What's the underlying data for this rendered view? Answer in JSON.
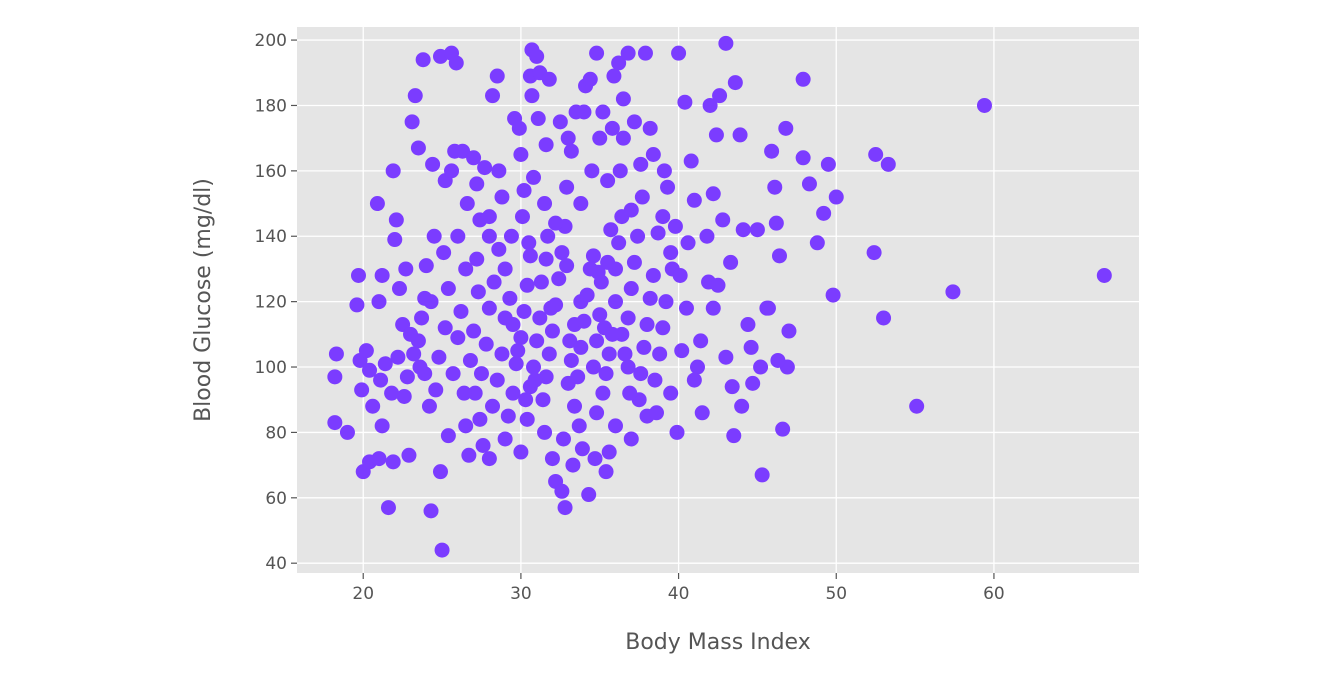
{
  "chart_data": {
    "type": "scatter",
    "title": "",
    "xlabel": "Body Mass Index",
    "ylabel": "Blood Glucose (mg/dl)",
    "xlim": [
      15.8,
      69.2
    ],
    "ylim": [
      37,
      204
    ],
    "xticks": [
      20,
      30,
      40,
      50,
      60
    ],
    "yticks": [
      40,
      60,
      80,
      100,
      120,
      140,
      160,
      180,
      200
    ],
    "grid": true,
    "colors": {
      "marker": "#7b3cff",
      "plot_bg": "#e5e5e5",
      "grid": "#ffffff",
      "text": "#555555"
    },
    "points": [
      [
        18.2,
        97
      ],
      [
        18.3,
        104
      ],
      [
        18.2,
        83
      ],
      [
        19.0,
        80
      ],
      [
        19.7,
        128
      ],
      [
        19.6,
        119
      ],
      [
        19.8,
        102
      ],
      [
        19.9,
        93
      ],
      [
        20.2,
        105
      ],
      [
        20.4,
        99
      ],
      [
        20.0,
        68
      ],
      [
        20.4,
        71
      ],
      [
        21.0,
        72
      ],
      [
        20.9,
        150
      ],
      [
        21.2,
        82
      ],
      [
        21.1,
        96
      ],
      [
        21.4,
        101
      ],
      [
        21.0,
        120
      ],
      [
        21.2,
        128
      ],
      [
        21.6,
        57
      ],
      [
        21.9,
        71
      ],
      [
        21.9,
        160
      ],
      [
        22.1,
        145
      ],
      [
        22.0,
        139
      ],
      [
        22.3,
        124
      ],
      [
        22.5,
        113
      ],
      [
        22.7,
        130
      ],
      [
        22.6,
        91
      ],
      [
        22.9,
        73
      ],
      [
        23.1,
        175
      ],
      [
        23.3,
        183
      ],
      [
        23.5,
        167
      ],
      [
        23.8,
        194
      ],
      [
        23.2,
        104
      ],
      [
        23.5,
        108
      ],
      [
        23.7,
        115
      ],
      [
        23.9,
        98
      ],
      [
        24.2,
        88
      ],
      [
        24.3,
        56
      ],
      [
        24.5,
        140
      ],
      [
        24.0,
        131
      ],
      [
        24.3,
        120
      ],
      [
        24.4,
        162
      ],
      [
        25.0,
        44
      ],
      [
        24.9,
        68
      ],
      [
        24.9,
        195
      ],
      [
        25.6,
        196
      ],
      [
        25.9,
        193
      ],
      [
        25.2,
        157
      ],
      [
        25.6,
        160
      ],
      [
        25.8,
        166
      ],
      [
        26.3,
        166
      ],
      [
        25.1,
        135
      ],
      [
        25.4,
        79
      ],
      [
        26.5,
        82
      ],
      [
        26.7,
        73
      ],
      [
        27.1,
        92
      ],
      [
        27.6,
        76
      ],
      [
        28.0,
        72
      ],
      [
        27.2,
        156
      ],
      [
        27.7,
        161
      ],
      [
        28.2,
        183
      ],
      [
        28.5,
        189
      ],
      [
        27.4,
        145
      ],
      [
        28.0,
        140
      ],
      [
        28.6,
        136
      ],
      [
        29.0,
        130
      ],
      [
        29.3,
        121
      ],
      [
        29.5,
        113
      ],
      [
        29.8,
        105
      ],
      [
        29.9,
        173
      ],
      [
        30.0,
        165
      ],
      [
        30.2,
        154
      ],
      [
        30.0,
        74
      ],
      [
        30.4,
        84
      ],
      [
        30.6,
        94
      ],
      [
        30.7,
        183
      ],
      [
        30.6,
        189
      ],
      [
        30.7,
        197
      ],
      [
        31.0,
        195
      ],
      [
        31.2,
        190
      ],
      [
        31.8,
        188
      ],
      [
        31.3,
        126
      ],
      [
        31.6,
        133
      ],
      [
        31.9,
        118
      ],
      [
        32.0,
        72
      ],
      [
        32.2,
        65
      ],
      [
        32.8,
        57
      ],
      [
        32.6,
        62
      ],
      [
        32.9,
        155
      ],
      [
        33.2,
        166
      ],
      [
        33.5,
        178
      ],
      [
        33.1,
        108
      ],
      [
        33.4,
        113
      ],
      [
        33.8,
        120
      ],
      [
        33.9,
        75
      ],
      [
        34.3,
        61
      ],
      [
        34.1,
        186
      ],
      [
        34.4,
        188
      ],
      [
        34.8,
        196
      ],
      [
        34.6,
        134
      ],
      [
        34.9,
        129
      ],
      [
        35.1,
        126
      ],
      [
        35.3,
        112
      ],
      [
        35.4,
        68
      ],
      [
        35.6,
        74
      ],
      [
        35.5,
        157
      ],
      [
        35.8,
        173
      ],
      [
        35.9,
        189
      ],
      [
        36.2,
        193
      ],
      [
        36.5,
        182
      ],
      [
        36.8,
        196
      ],
      [
        37.2,
        175
      ],
      [
        37.6,
        162
      ],
      [
        37.9,
        196
      ],
      [
        36.0,
        120
      ],
      [
        36.4,
        110
      ],
      [
        36.8,
        100
      ],
      [
        37.0,
        78
      ],
      [
        37.5,
        90
      ],
      [
        38.0,
        85
      ],
      [
        38.4,
        128
      ],
      [
        38.7,
        141
      ],
      [
        39.0,
        146
      ],
      [
        39.3,
        155
      ],
      [
        39.6,
        130
      ],
      [
        39.9,
        80
      ],
      [
        40.2,
        105
      ],
      [
        40.5,
        118
      ],
      [
        40.0,
        196
      ],
      [
        40.4,
        181
      ],
      [
        40.8,
        163
      ],
      [
        41.0,
        151
      ],
      [
        41.5,
        86
      ],
      [
        41.2,
        100
      ],
      [
        41.9,
        126
      ],
      [
        42.2,
        153
      ],
      [
        42.0,
        180
      ],
      [
        42.4,
        171
      ],
      [
        42.6,
        183
      ],
      [
        42.8,
        145
      ],
      [
        43.0,
        199
      ],
      [
        43.3,
        132
      ],
      [
        43.5,
        79
      ],
      [
        43.6,
        187
      ],
      [
        43.9,
        171
      ],
      [
        44.1,
        142
      ],
      [
        44.4,
        113
      ],
      [
        44.7,
        95
      ],
      [
        45.0,
        142
      ],
      [
        45.3,
        67
      ],
      [
        45.6,
        118
      ],
      [
        45.9,
        166
      ],
      [
        46.1,
        155
      ],
      [
        46.2,
        144
      ],
      [
        46.4,
        134
      ],
      [
        46.6,
        81
      ],
      [
        46.8,
        173
      ],
      [
        47.0,
        111
      ],
      [
        46.9,
        100
      ],
      [
        47.9,
        188
      ],
      [
        47.9,
        164
      ],
      [
        48.3,
        156
      ],
      [
        48.8,
        138
      ],
      [
        49.2,
        147
      ],
      [
        49.5,
        162
      ],
      [
        49.8,
        122
      ],
      [
        50.0,
        152
      ],
      [
        52.4,
        135
      ],
      [
        52.5,
        165
      ],
      [
        53.0,
        115
      ],
      [
        53.3,
        162
      ],
      [
        55.1,
        88
      ],
      [
        57.4,
        123
      ],
      [
        59.4,
        180
      ],
      [
        67.0,
        128
      ],
      [
        20.6,
        88
      ],
      [
        21.8,
        92
      ],
      [
        22.2,
        103
      ],
      [
        22.8,
        97
      ],
      [
        23.0,
        110
      ],
      [
        23.6,
        100
      ],
      [
        23.9,
        121
      ],
      [
        24.6,
        93
      ],
      [
        24.8,
        103
      ],
      [
        25.2,
        112
      ],
      [
        25.4,
        124
      ],
      [
        25.7,
        98
      ],
      [
        26.0,
        109
      ],
      [
        26.2,
        117
      ],
      [
        26.5,
        130
      ],
      [
        26.8,
        102
      ],
      [
        27.0,
        111
      ],
      [
        27.3,
        123
      ],
      [
        27.5,
        98
      ],
      [
        27.8,
        107
      ],
      [
        28.0,
        118
      ],
      [
        28.3,
        126
      ],
      [
        28.5,
        96
      ],
      [
        28.8,
        104
      ],
      [
        29.0,
        115
      ],
      [
        29.2,
        85
      ],
      [
        29.5,
        92
      ],
      [
        29.7,
        101
      ],
      [
        30.0,
        109
      ],
      [
        30.2,
        117
      ],
      [
        30.4,
        125
      ],
      [
        30.6,
        134
      ],
      [
        30.8,
        100
      ],
      [
        31.0,
        108
      ],
      [
        31.2,
        115
      ],
      [
        31.4,
        90
      ],
      [
        31.6,
        97
      ],
      [
        31.8,
        104
      ],
      [
        32.0,
        111
      ],
      [
        32.2,
        119
      ],
      [
        32.4,
        127
      ],
      [
        32.6,
        135
      ],
      [
        32.8,
        143
      ],
      [
        33.0,
        95
      ],
      [
        33.2,
        102
      ],
      [
        33.4,
        88
      ],
      [
        33.6,
        97
      ],
      [
        33.8,
        106
      ],
      [
        34.0,
        114
      ],
      [
        34.2,
        122
      ],
      [
        34.4,
        130
      ],
      [
        34.6,
        100
      ],
      [
        34.8,
        108
      ],
      [
        35.0,
        116
      ],
      [
        35.2,
        92
      ],
      [
        35.4,
        98
      ],
      [
        35.6,
        104
      ],
      [
        35.8,
        110
      ],
      [
        36.0,
        130
      ],
      [
        36.2,
        138
      ],
      [
        36.4,
        146
      ],
      [
        36.6,
        104
      ],
      [
        36.8,
        115
      ],
      [
        37.0,
        124
      ],
      [
        37.2,
        132
      ],
      [
        37.4,
        140
      ],
      [
        37.6,
        98
      ],
      [
        37.8,
        106
      ],
      [
        38.0,
        113
      ],
      [
        38.2,
        121
      ],
      [
        38.5,
        96
      ],
      [
        38.8,
        104
      ],
      [
        39.0,
        112
      ],
      [
        39.2,
        120
      ],
      [
        39.5,
        135
      ],
      [
        39.8,
        143
      ],
      [
        40.1,
        128
      ],
      [
        40.6,
        138
      ],
      [
        41.0,
        96
      ],
      [
        41.4,
        108
      ],
      [
        41.8,
        140
      ],
      [
        42.2,
        118
      ],
      [
        42.5,
        125
      ],
      [
        43.0,
        103
      ],
      [
        43.4,
        94
      ],
      [
        44.0,
        88
      ],
      [
        44.6,
        106
      ],
      [
        45.2,
        100
      ],
      [
        45.7,
        118
      ],
      [
        46.3,
        102
      ],
      [
        26.0,
        140
      ],
      [
        26.6,
        150
      ],
      [
        27.2,
        133
      ],
      [
        28.0,
        146
      ],
      [
        28.8,
        152
      ],
      [
        29.4,
        140
      ],
      [
        30.1,
        146
      ],
      [
        30.8,
        158
      ],
      [
        31.5,
        150
      ],
      [
        32.2,
        144
      ],
      [
        33.0,
        170
      ],
      [
        33.8,
        150
      ],
      [
        34.5,
        160
      ],
      [
        35.2,
        178
      ],
      [
        35.7,
        142
      ],
      [
        36.3,
        160
      ],
      [
        37.0,
        148
      ],
      [
        37.7,
        152
      ],
      [
        38.4,
        165
      ],
      [
        39.1,
        160
      ],
      [
        29.6,
        176
      ],
      [
        31.1,
        176
      ],
      [
        32.5,
        175
      ],
      [
        34.0,
        178
      ],
      [
        35.0,
        170
      ],
      [
        36.5,
        170
      ],
      [
        38.2,
        173
      ],
      [
        31.6,
        168
      ],
      [
        28.6,
        160
      ],
      [
        27.0,
        164
      ],
      [
        30.3,
        90
      ],
      [
        31.5,
        80
      ],
      [
        32.7,
        78
      ],
      [
        33.7,
        82
      ],
      [
        34.8,
        86
      ],
      [
        30.9,
        96
      ],
      [
        29.0,
        78
      ],
      [
        28.2,
        88
      ],
      [
        27.4,
        84
      ],
      [
        26.4,
        92
      ],
      [
        33.3,
        70
      ],
      [
        34.7,
        72
      ],
      [
        36.0,
        82
      ],
      [
        36.9,
        92
      ],
      [
        38.6,
        86
      ],
      [
        39.5,
        92
      ],
      [
        35.5,
        132
      ],
      [
        32.9,
        131
      ],
      [
        31.7,
        140
      ],
      [
        30.5,
        138
      ]
    ]
  }
}
